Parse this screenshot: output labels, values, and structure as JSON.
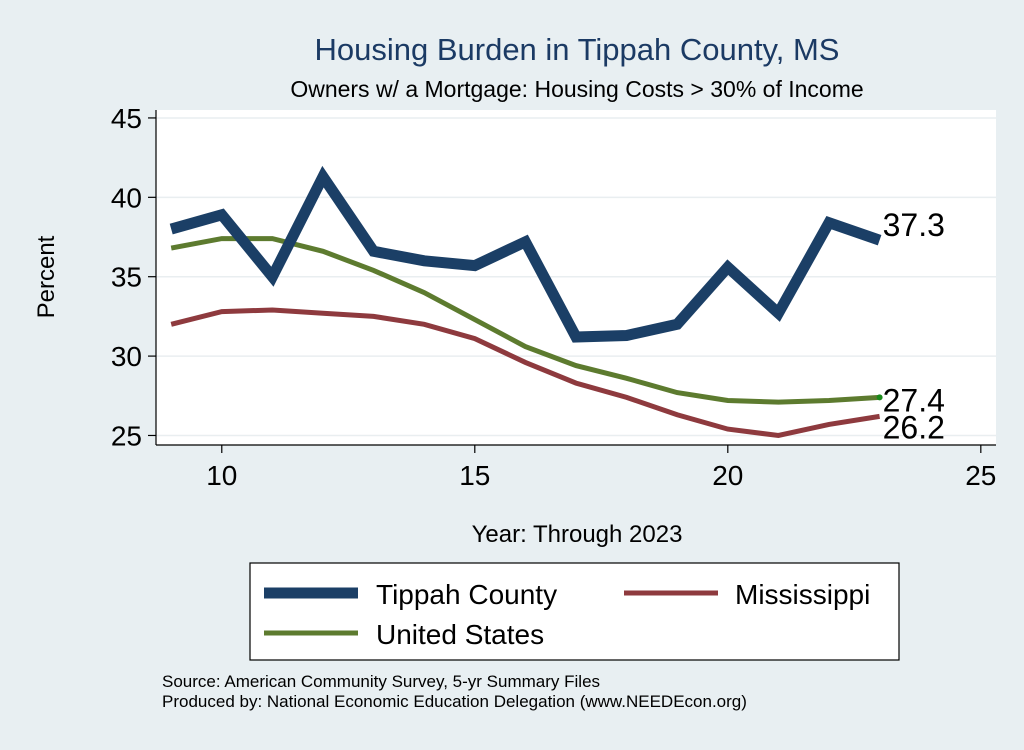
{
  "chart_data": {
    "type": "line",
    "title": "Housing Burden in Tippah County, MS",
    "subtitle": "Owners w/ a Mortgage: Housing Costs > 30% of Income",
    "xlabel": "Year: Through 2023",
    "ylabel": "Percent",
    "xlim": [
      8.7,
      25.3
    ],
    "ylim": [
      24.4,
      45.5
    ],
    "xticks": [
      10,
      15,
      20,
      25
    ],
    "yticks": [
      25,
      30,
      35,
      40,
      45
    ],
    "grid": true,
    "legend_position": "bottom",
    "x": [
      9,
      10,
      11,
      12,
      13,
      14,
      15,
      16,
      17,
      18,
      19,
      20,
      21,
      22,
      23
    ],
    "series": [
      {
        "name": "Tippah County",
        "color": "#1b3f66",
        "values": [
          38.0,
          38.9,
          35.0,
          41.3,
          36.6,
          36.0,
          35.7,
          37.2,
          31.2,
          31.3,
          32.0,
          35.6,
          32.7,
          38.4,
          37.3
        ],
        "end_label": "37.3"
      },
      {
        "name": "Mississippi",
        "color": "#8e3a3e",
        "values": [
          32.0,
          32.8,
          32.9,
          32.7,
          32.5,
          32.0,
          31.1,
          29.6,
          28.3,
          27.4,
          26.3,
          25.4,
          25.0,
          25.7,
          26.2
        ],
        "end_label": "26.2"
      },
      {
        "name": "United States",
        "color": "#5d7b2f",
        "values": [
          36.8,
          37.4,
          37.4,
          36.6,
          35.4,
          34.0,
          32.3,
          30.6,
          29.4,
          28.6,
          27.7,
          27.2,
          27.1,
          27.2,
          27.4
        ],
        "end_label": "27.4"
      }
    ]
  },
  "source_notes": {
    "source": "Source: American Community Survey, 5-yr Summary Files",
    "producer": "Produced by: National Economic Education Delegation (www.NEEDEcon.org)"
  }
}
